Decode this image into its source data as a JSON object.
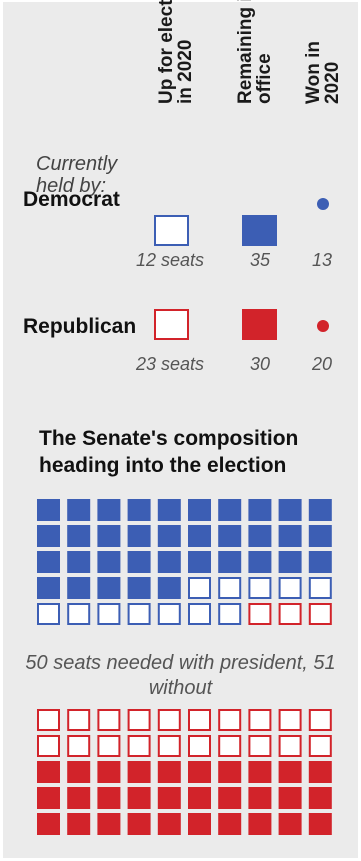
{
  "colors": {
    "democrat": "#3c5eb4",
    "republican": "#d2232a",
    "open_fill": "#ffffff"
  },
  "legend": {
    "held_by": "Currently held by:",
    "col_up": "Up for election in 2020",
    "col_up_l1": "Up for election",
    "col_up_l2": "in 2020",
    "col_remaining": "Remaining in office",
    "col_remaining_l1": "Remaining in",
    "col_remaining_l2": "office",
    "col_won": "Won in 2020",
    "col_won_l1": "Won in",
    "col_won_l2": "2020",
    "democrat": {
      "label": "Democrat",
      "up_text": "12 seats",
      "remaining_text": "35",
      "won_text": "13"
    },
    "republican": {
      "label": "Republican",
      "up_text": "23 seats",
      "remaining_text": "30",
      "won_text": "20"
    }
  },
  "chart_data": {
    "type": "waffle",
    "title": "The Senate's composition heading into the election",
    "note": "50 seats needed with president, 51 without",
    "columns": 10,
    "categories": [
      "Democrat, remaining in office",
      "Democrat, up for election in 2020",
      "Republican, up for election in 2020",
      "Republican, remaining in office"
    ],
    "series": [
      {
        "name": "Democrat",
        "remaining": 35,
        "up_for_election": 12,
        "won_2020": 13
      },
      {
        "name": "Republican",
        "remaining": 30,
        "up_for_election": 23,
        "won_2020": 20
      }
    ]
  }
}
